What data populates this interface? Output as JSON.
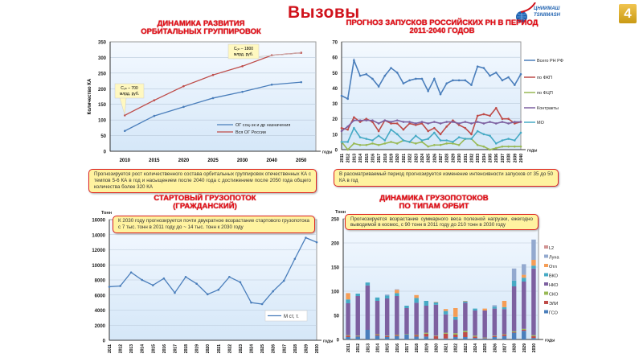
{
  "slide": {
    "title": "Вызовы",
    "page_number": "4",
    "logo_text": [
      "ЦНИИМАШ",
      "TSNIIMASH"
    ]
  },
  "colors": {
    "title_red": "#e3101a",
    "note_bg": "#fff3a0",
    "plot_bg": "#dfeefb"
  },
  "chart_data": [
    {
      "type": "line",
      "title": "ДИНАМИКА РАЗВИТИЯ ОРБИТАЛЬНЫХ ГРУППИРОВОК",
      "ylabel": "Количество КА",
      "xlabel": "годы",
      "ylim": [
        0,
        350
      ],
      "yticks": [
        0,
        50,
        100,
        150,
        200,
        250,
        300,
        350
      ],
      "categories": [
        "2010",
        "2015",
        "2020",
        "2025",
        "2030",
        "2040",
        "2050"
      ],
      "series": [
        {
          "name": "ОГ соц-эк и др назначения",
          "color": "#4a7ebb",
          "values": [
            65,
            113,
            142,
            170,
            190,
            213,
            221
          ]
        },
        {
          "name": "Вся ОГ России",
          "color": "#be4b48",
          "values": [
            115,
            163,
            208,
            244,
            272,
            307,
            315
          ]
        }
      ],
      "annotations": [
        {
          "text": "Cₒₕ – 700 млрд. руб.",
          "at_index": 0
        },
        {
          "text": "Cₒₕ – 1800 млрд. руб.",
          "at_index": 6
        }
      ],
      "legend": "bottom-right",
      "note": "Прогнозируется рост количественного состава орбитальных группировок отечественных КА с темпов 5-6 КА в год и насыщением после 2040 года с достижением после 2050 года общего количества более 320 КА"
    },
    {
      "type": "line",
      "title": "ПРОГНОЗ ЗАПУСКОВ РОССИЙСКИХ РН В ПЕРИОД 2011-2040 ГОДОВ",
      "xlabel": "годы",
      "ylim": [
        0,
        70
      ],
      "yticks": [
        0,
        10,
        20,
        30,
        40,
        50,
        60,
        70
      ],
      "categories": [
        "2011",
        "2012",
        "2013",
        "2014",
        "2015",
        "2016",
        "2017",
        "2018",
        "2019",
        "2020",
        "2021",
        "2022",
        "2023",
        "2024",
        "2025",
        "2026",
        "2027",
        "2028",
        "2029",
        "2030",
        "2031",
        "2032",
        "2033",
        "2034",
        "2035",
        "2036",
        "2037",
        "2038",
        "2039",
        "2040"
      ],
      "series": [
        {
          "name": "Всего РН РФ",
          "color": "#4a7ebb",
          "values": [
            35,
            33,
            58,
            48,
            49,
            46,
            41,
            48,
            53,
            50,
            43,
            45,
            46,
            46,
            38,
            46,
            36,
            43,
            45,
            45,
            45,
            42,
            54,
            53,
            48,
            50,
            45,
            47,
            42,
            49
          ]
        },
        {
          "name": "по ФКП",
          "color": "#be4b48",
          "values": [
            14,
            13,
            21,
            18,
            20,
            18,
            12,
            19,
            17,
            17,
            13,
            17,
            16,
            17,
            12,
            14,
            10,
            15,
            19,
            16,
            14,
            10,
            22,
            23,
            22,
            27,
            20,
            20,
            17,
            18
          ]
        },
        {
          "name": "по ФЦП",
          "color": "#98b954",
          "values": [
            5,
            0,
            4,
            3,
            3,
            4,
            3,
            4,
            5,
            4,
            6,
            5,
            4,
            5,
            2,
            3,
            3,
            4,
            4,
            3,
            7,
            7,
            3,
            2,
            0,
            1,
            2,
            2,
            2,
            2
          ]
        },
        {
          "name": "Контракты",
          "color": "#7d60a0",
          "values": [
            12,
            15,
            19,
            19,
            19,
            19,
            17,
            19,
            18,
            19,
            18,
            18,
            17,
            18,
            17,
            18,
            17,
            18,
            18,
            17,
            18,
            17,
            18,
            17,
            18,
            17,
            18,
            17,
            18,
            18
          ]
        },
        {
          "name": "МО",
          "color": "#46aac5",
          "values": [
            5,
            5,
            14,
            8,
            7,
            6,
            9,
            6,
            13,
            10,
            6,
            5,
            9,
            6,
            7,
            11,
            6,
            6,
            5,
            8,
            7,
            7,
            12,
            10,
            9,
            4,
            6,
            7,
            6,
            11
          ]
        }
      ],
      "legend": "right",
      "note": "В рассматриваемый период прогнозируется изменение интенсивности запусков от 35 до 50 КА в год"
    },
    {
      "type": "line",
      "title": "СТАРТОВЫЙ ГРУЗОПОТОК (ГРАЖДАНСКИЙ)",
      "ylabel": "Тонн",
      "xlabel": "годы",
      "ylim": [
        0,
        16000
      ],
      "yticks": [
        0,
        2000,
        4000,
        6000,
        8000,
        10000,
        12000,
        14000,
        16000
      ],
      "categories": [
        "2011",
        "2012",
        "2013",
        "2014",
        "2015",
        "2016",
        "2017",
        "2018",
        "2019",
        "2020",
        "2021",
        "2022",
        "2023",
        "2024",
        "2025",
        "2026",
        "2027",
        "2028",
        "2029",
        "2030"
      ],
      "series": [
        {
          "name": "М ст, т.",
          "color": "#4a7ebb",
          "values": [
            7100,
            7200,
            9000,
            8000,
            7300,
            8200,
            6300,
            8400,
            7500,
            6100,
            6700,
            8400,
            7700,
            5000,
            4800,
            6500,
            7900,
            10800,
            13600,
            13000
          ]
        }
      ],
      "legend": "bottom-right",
      "note": "К 2030 году прогнозируется почти двукратное возрастание стартового грузопотока с 7 тыс. тонн в 2011 году до ~ 14 тыс. тонн к 2030 году"
    },
    {
      "type": "bar",
      "stacked": true,
      "title": "ДИНАМИКА ГРУЗОПОТОКОВ ПО ТИПАМ ОРБИТ",
      "ylabel": "Тонн",
      "xlabel": "годы",
      "ylim": [
        0,
        250
      ],
      "yticks": [
        0,
        50,
        100,
        150,
        200,
        250
      ],
      "categories": [
        "2011",
        "2012",
        "2013",
        "2014",
        "2015",
        "2016",
        "2017",
        "2018",
        "2019",
        "2020",
        "2021",
        "2022",
        "2023",
        "2024",
        "2025",
        "2026",
        "2027",
        "2028",
        "2029",
        "2030"
      ],
      "series": [
        {
          "name": "ГСО",
          "color": "#4a7ebb",
          "values": [
            5,
            6,
            20,
            8,
            5,
            7,
            10,
            6,
            6,
            1,
            2,
            5,
            5,
            3,
            2,
            5,
            7,
            14,
            18,
            3
          ]
        },
        {
          "name": "ЭЛИ",
          "color": "#be4b48",
          "values": [
            3,
            1,
            0,
            2,
            2,
            2,
            0,
            3,
            6,
            6,
            10,
            5,
            10,
            3,
            1,
            2,
            3,
            1,
            2,
            4
          ]
        },
        {
          "name": "СКО",
          "color": "#98b954",
          "values": [
            1,
            1,
            0,
            1,
            1,
            1,
            1,
            1,
            2,
            1,
            2,
            3,
            3,
            2,
            1,
            1,
            1,
            2,
            2,
            2
          ]
        },
        {
          "name": "НКО",
          "color": "#7d60a0",
          "values": [
            66,
            82,
            92,
            69,
            77,
            80,
            54,
            66,
            56,
            64,
            38,
            28,
            58,
            52,
            56,
            56,
            52,
            93,
            98,
            138
          ]
        },
        {
          "name": "ВКО",
          "color": "#46aac5",
          "values": [
            8,
            5,
            6,
            7,
            6,
            6,
            5,
            10,
            10,
            5,
            7,
            6,
            3,
            4,
            0,
            4,
            4,
            12,
            8,
            6
          ]
        },
        {
          "name": "Отл",
          "color": "#f59d56",
          "values": [
            13,
            0,
            0,
            0,
            0,
            7,
            0,
            6,
            0,
            1,
            4,
            18,
            1,
            0,
            4,
            0,
            13,
            0,
            6,
            12
          ]
        },
        {
          "name": "Луна",
          "color": "#93a9cf",
          "values": [
            0,
            0,
            0,
            0,
            2,
            1,
            0,
            0,
            0,
            0,
            0,
            0,
            0,
            0,
            0,
            3,
            0,
            25,
            22,
            42
          ]
        },
        {
          "name": "L2",
          "color": "#d19392",
          "values": [
            0,
            0,
            0,
            0,
            0,
            0,
            0,
            0,
            0,
            0,
            0,
            0,
            0,
            0,
            0,
            0,
            0,
            0,
            0,
            0
          ]
        }
      ],
      "legend": "right",
      "note": "Прогнозируется возрастание суммарного веса полезной нагрузки, ежегодно выводимой в космос, с 90 тонн в 2011 году до 210 тонн в 2030 году"
    }
  ]
}
